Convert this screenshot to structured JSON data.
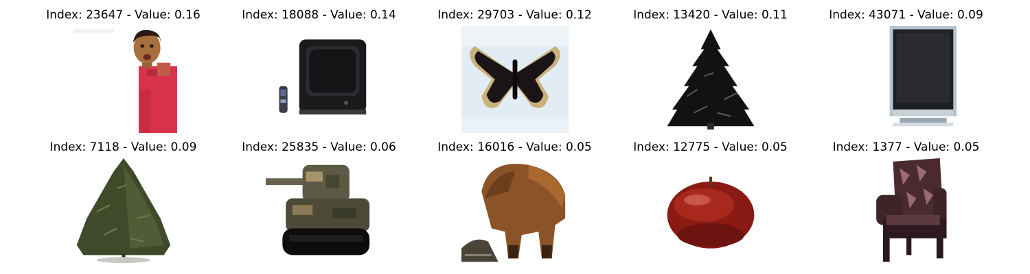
{
  "panels": [
    {
      "title": "Index: 23647 - Value: 0.16",
      "subject": "person-in-red-shirt"
    },
    {
      "title": "Index: 18088 - Value: 0.14",
      "subject": "crt-television-with-remote"
    },
    {
      "title": "Index: 29703 - Value: 0.12",
      "subject": "butterfly"
    },
    {
      "title": "Index: 13420 - Value: 0.11",
      "subject": "dark-pine-tree"
    },
    {
      "title": "Index: 43071 - Value: 0.09",
      "subject": "flat-screen-television"
    },
    {
      "title": "Index: 7118 - Value: 0.09",
      "subject": "green-pine-tree"
    },
    {
      "title": "Index: 25835 - Value: 0.06",
      "subject": "toy-tank"
    },
    {
      "title": "Index: 16016 - Value: 0.05",
      "subject": "bear"
    },
    {
      "title": "Index: 12775 - Value: 0.05",
      "subject": "red-apple"
    },
    {
      "title": "Index: 1377 - Value: 0.05",
      "subject": "armchair"
    }
  ]
}
